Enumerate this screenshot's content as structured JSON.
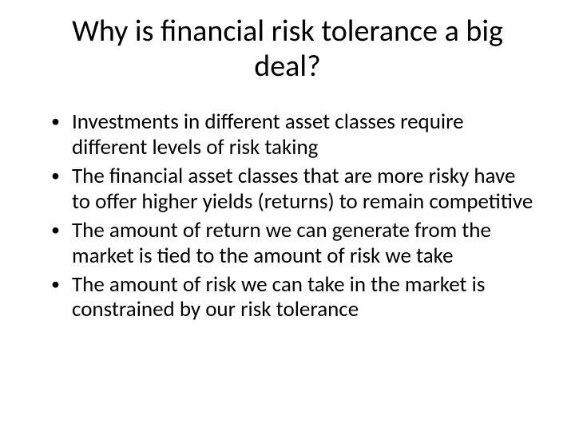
{
  "slide": {
    "title": "Why is financial risk tolerance a big deal?",
    "bullets": [
      "Investments in different asset classes require different levels of risk taking",
      "The financial asset classes that are more risky have to offer higher yields (returns) to remain competitive",
      "The amount of return we can generate from the market is tied to the amount of risk we take",
      "The amount of risk we can take in the market is constrained by our risk tolerance"
    ]
  }
}
